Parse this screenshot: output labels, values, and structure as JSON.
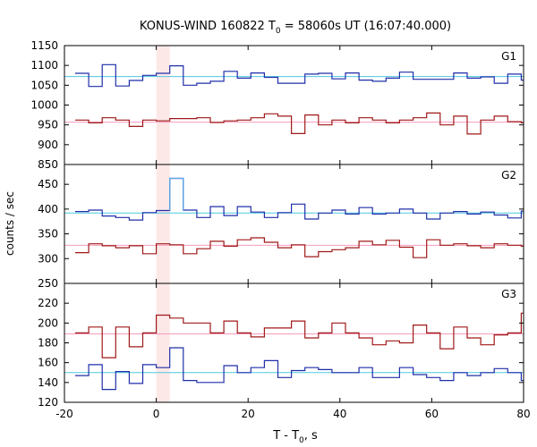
{
  "chart_data": {
    "type": "line",
    "title": "KONUS-WIND 160822 T0 = 58060s UT (16:07:40.000)",
    "title_parts": {
      "pre": "KONUS-WIND 160822 T",
      "sub": "0",
      "post": " = 58060s UT (16:07:40.000)"
    },
    "xlabel_parts": {
      "pre": "T - T",
      "sub": "0",
      "post": ", s"
    },
    "ylabel": "counts / sec",
    "xlim": [
      -20,
      80
    ],
    "x_ticks": [
      "-20",
      "0",
      "20",
      "40",
      "60",
      "80"
    ],
    "highlight": {
      "x0": 0,
      "x1": 2.944,
      "color": "#fde8e8"
    },
    "x_bins": [
      -17.664,
      -14.72,
      -11.776,
      -8.832,
      -5.888,
      -2.944,
      0,
      2.944,
      5.888,
      8.832,
      11.776,
      14.72,
      17.664,
      20.608,
      23.552,
      26.496,
      29.44,
      32.384,
      35.328,
      38.272,
      41.216,
      44.16,
      47.104,
      50.048,
      52.992,
      55.936,
      58.88,
      61.824,
      64.768,
      67.712,
      70.656,
      73.6,
      76.544,
      79.488
    ],
    "panels": [
      {
        "label": "G1",
        "ylim": [
          850,
          1150
        ],
        "y_ticks": [
          "850",
          "900",
          "950",
          "1000",
          "1050",
          "1100",
          "1150"
        ],
        "series": [
          {
            "color": "#1f2fa8",
            "fit": 1072,
            "fit_color": "#4fc8e0",
            "values": [
              1080,
              1047,
              1102,
              1048,
              1062,
              1075,
              1080,
              1099,
              1050,
              1055,
              1060,
              1085,
              1068,
              1081,
              1070,
              1055,
              1055,
              1078,
              1080,
              1066,
              1081,
              1063,
              1060,
              1068,
              1083,
              1065,
              1065,
              1065,
              1081,
              1068,
              1071,
              1055,
              1078,
              1063
            ]
          },
          {
            "color": "#a01818",
            "fit": 957,
            "fit_color": "#f59cbc",
            "values": [
              962,
              955,
              968,
              962,
              946,
              962,
              960,
              966,
              966,
              968,
              956,
              960,
              962,
              968,
              978,
              972,
              928,
              975,
              950,
              962,
              955,
              968,
              962,
              955,
              962,
              968,
              980,
              950,
              972,
              927,
              962,
              972,
              958,
              955
            ]
          }
        ]
      },
      {
        "label": "G2",
        "ylim": [
          250,
          490
        ],
        "y_ticks": [
          "250",
          "300",
          "350",
          "400",
          "450"
        ],
        "series": [
          {
            "color": "#1f2fa8",
            "fit": 392,
            "fit_color": "#4fc8e0",
            "values": [
              395,
              398,
              386,
              383,
              378,
              393,
              397,
              462,
              398,
              383,
              405,
              387,
              405,
              394,
              383,
              393,
              410,
              380,
              392,
              398,
              390,
              403,
              390,
              392,
              400,
              392,
              380,
              392,
              395,
              390,
              394,
              388,
              382,
              396
            ]
          },
          {
            "color": "#a01818",
            "fit": 327,
            "fit_color": "#f59cbc",
            "values": [
              312,
              330,
              326,
              322,
              326,
              310,
              330,
              328,
              310,
              320,
              335,
              325,
              338,
              342,
              333,
              322,
              328,
              304,
              314,
              318,
              322,
              335,
              328,
              337,
              323,
              302,
              338,
              327,
              330,
              326,
              322,
              330,
              327,
              325
            ]
          }
        ]
      },
      {
        "label": "G3",
        "ylim": [
          120,
          240
        ],
        "y_ticks": [
          "120",
          "140",
          "160",
          "180",
          "200",
          "220"
        ],
        "series": [
          {
            "color": "#1f2fa8",
            "fit": 150,
            "fit_color": "#4fc8e0",
            "values": [
              147,
              158,
              133,
              151,
              139,
              158,
              155,
              175,
              142,
              140,
              140,
              157,
              150,
              155,
              162,
              145,
              152,
              155,
              153,
              150,
              150,
              155,
              145,
              145,
              155,
              148,
              145,
              142,
              150,
              147,
              150,
              154,
              150,
              142
            ]
          },
          {
            "color": "#a01818",
            "fit": 189,
            "fit_color": "#f59cbc",
            "values": [
              190,
              196,
              165,
              196,
              176,
              190,
              208,
              205,
              200,
              200,
              190,
              202,
              190,
              186,
              195,
              195,
              202,
              185,
              190,
              200,
              190,
              185,
              178,
              182,
              180,
              198,
              190,
              174,
              196,
              185,
              178,
              188,
              190,
              210
            ]
          }
        ]
      }
    ]
  }
}
